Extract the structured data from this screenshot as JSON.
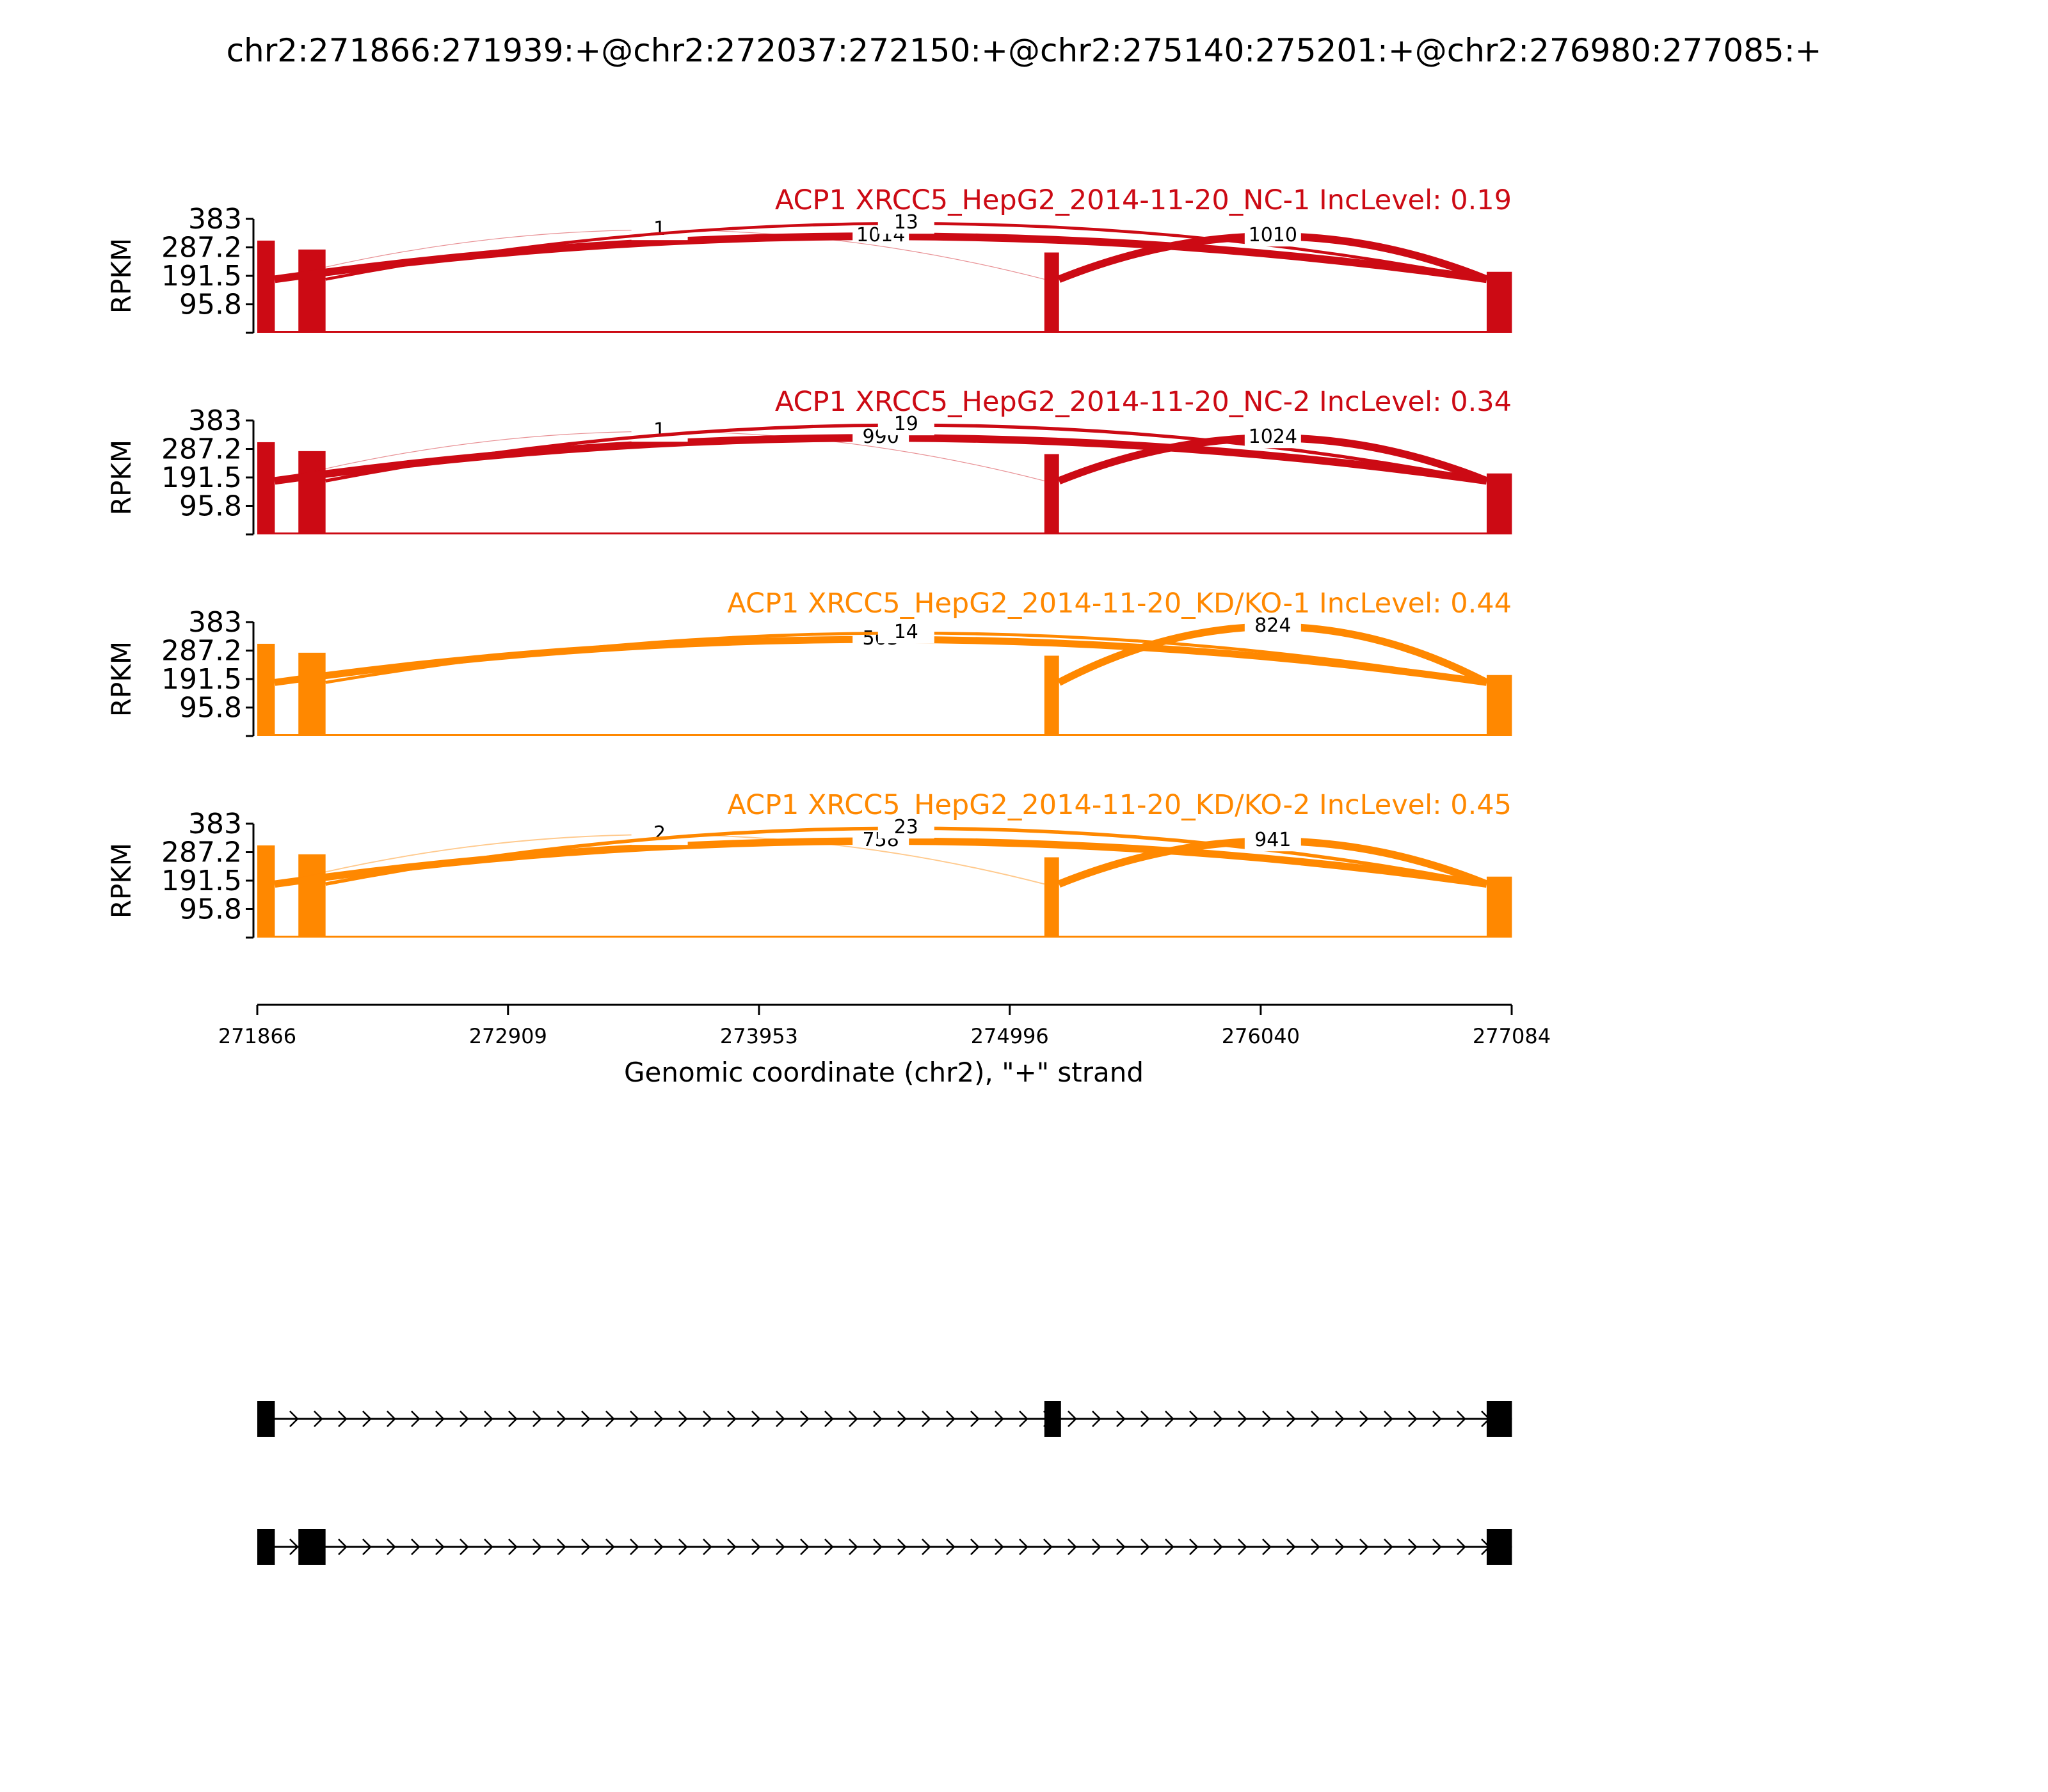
{
  "chart_data": {
    "type": "sashimi",
    "title": "chr2:271866:271939:+@chr2:272037:272150:+@chr2:275140:275201:+@chr2:276980:277085:+",
    "ylabel": "RPKM",
    "xlabel": "Genomic coordinate (chr2), \"+\" strand",
    "xlim": [
      271866,
      277084
    ],
    "x_ticks": [
      "271866",
      "272909",
      "273953",
      "274996",
      "276040",
      "277084"
    ],
    "ylim": [
      0,
      383
    ],
    "y_ticks": [
      "383",
      "287.2",
      "191.5",
      "95.8"
    ],
    "exons": [
      [
        271866,
        271939
      ],
      [
        272037,
        272150
      ],
      [
        275140,
        275201
      ],
      [
        276980,
        277085
      ]
    ],
    "exon_heights": [
      310,
      280,
      270,
      205
    ],
    "samples": [
      {
        "name": "ACP1 XRCC5_HepG2_2014-11-20_NC-1 IncLevel: 0.19",
        "color": "#cc0a14",
        "junctions": [
          {
            "donor": 271939,
            "acceptor": 276980,
            "label": "1014",
            "reads": 1014
          },
          {
            "donor": 271939,
            "acceptor": 275140,
            "label": "1",
            "reads": 1
          },
          {
            "donor": 272150,
            "acceptor": 276980,
            "label": "13",
            "reads": 13
          },
          {
            "donor": 275201,
            "acceptor": 276980,
            "label": "1010",
            "reads": 1010
          }
        ]
      },
      {
        "name": "ACP1 XRCC5_HepG2_2014-11-20_NC-2 IncLevel: 0.34",
        "color": "#cc0a14",
        "junctions": [
          {
            "donor": 271939,
            "acceptor": 276980,
            "label": "990",
            "reads": 990
          },
          {
            "donor": 271939,
            "acceptor": 275140,
            "label": "1",
            "reads": 1
          },
          {
            "donor": 272150,
            "acceptor": 276980,
            "label": "19",
            "reads": 19
          },
          {
            "donor": 275201,
            "acceptor": 276980,
            "label": "1024",
            "reads": 1024
          }
        ]
      },
      {
        "name": "ACP1 XRCC5_HepG2_2014-11-20_KD/KO-1 IncLevel: 0.44",
        "color": "#ff8800",
        "junctions": [
          {
            "donor": 271939,
            "acceptor": 276980,
            "label": "563",
            "reads": 563
          },
          {
            "donor": 272150,
            "acceptor": 276980,
            "label": "14",
            "reads": 14
          },
          {
            "donor": 275201,
            "acceptor": 276980,
            "label": "824",
            "reads": 824
          }
        ]
      },
      {
        "name": "ACP1 XRCC5_HepG2_2014-11-20_KD/KO-2 IncLevel: 0.45",
        "color": "#ff8800",
        "junctions": [
          {
            "donor": 271939,
            "acceptor": 276980,
            "label": "758",
            "reads": 758
          },
          {
            "donor": 271939,
            "acceptor": 275140,
            "label": "2",
            "reads": 2
          },
          {
            "donor": 272150,
            "acceptor": 276980,
            "label": "23",
            "reads": 23
          },
          {
            "donor": 275201,
            "acceptor": 276980,
            "label": "941",
            "reads": 941
          }
        ]
      }
    ],
    "isoforms": [
      {
        "exons": [
          [
            271866,
            271939
          ],
          [
            275140,
            275201
          ],
          [
            276980,
            277085
          ]
        ]
      },
      {
        "exons": [
          [
            271866,
            271939
          ],
          [
            272037,
            272150
          ],
          [
            276980,
            277085
          ]
        ]
      }
    ]
  }
}
